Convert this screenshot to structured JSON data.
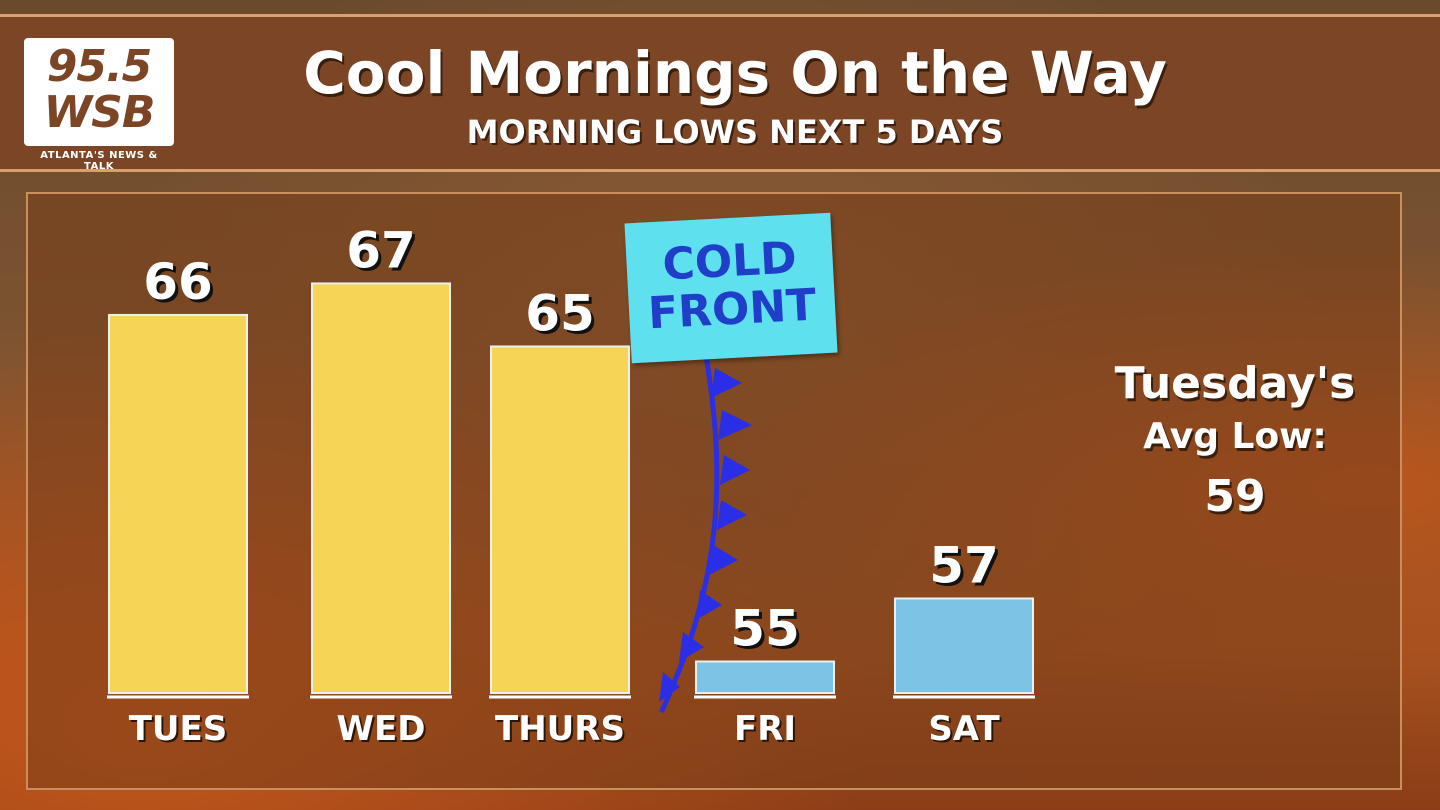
{
  "header": {
    "title": "Cool Mornings On the Way",
    "subtitle": "MORNING LOWS NEXT 5 DAYS",
    "logo_line1": "95.5",
    "logo_line2": "WSB",
    "logo_tagline": "ATLANTA'S NEWS & TALK"
  },
  "annotation": {
    "front_line1": "COLD",
    "front_line2": "FRONT",
    "avg_line1": "Tuesday's",
    "avg_line2": "Avg Low:",
    "avg_value": "59"
  },
  "colors": {
    "warm_bar": "#f6d455",
    "cool_bar": "#7cc3e6",
    "front": "#2a2ee6",
    "header": "#7b4526"
  },
  "chart_data": {
    "type": "bar",
    "title": "Cool Mornings On the Way",
    "subtitle": "MORNING LOWS NEXT 5 DAYS",
    "categories": [
      "TUES",
      "WED",
      "THURS",
      "FRI",
      "SAT"
    ],
    "values": [
      66,
      67,
      65,
      55,
      57
    ],
    "bar_colors": [
      "#f6d455",
      "#f6d455",
      "#f6d455",
      "#7cc3e6",
      "#7cc3e6"
    ],
    "ylim": [
      54,
      67.3
    ],
    "grid": false,
    "legend": "none"
  }
}
